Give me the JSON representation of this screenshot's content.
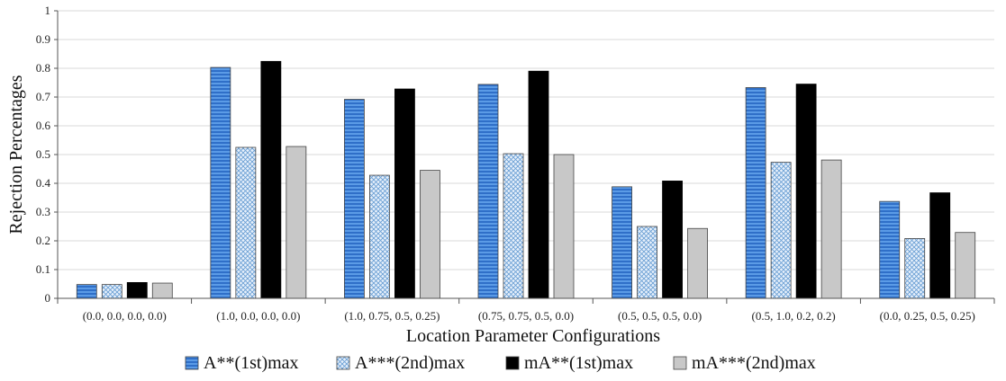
{
  "chart_data": {
    "type": "bar",
    "title": "",
    "xlabel": "Location Parameter Configurations",
    "ylabel": "Rejection Percentages",
    "ylim": [
      0,
      1
    ],
    "yticks": [
      "0",
      "0.1",
      "0.2",
      "0.3",
      "0.4",
      "0.5",
      "0.6",
      "0.7",
      "0.8",
      "0.9",
      "1"
    ],
    "grid": "horizontal",
    "legend_position": "bottom",
    "categories": [
      "(0.0, 0.0, 0.0, 0.0)",
      "(1.0, 0.0, 0.0, 0.0)",
      "(1.0, 0.75, 0.5, 0.25)",
      "(0.75, 0.75, 0.5, 0.0)",
      "(0.5, 0.5, 0.5, 0.0)",
      "(0.5, 1.0, 0.2, 0.2)",
      "(0.0, 0.25, 0.5, 0.25)"
    ],
    "series": [
      {
        "name": "A**(1st)max",
        "values": [
          0.048,
          0.803,
          0.692,
          0.744,
          0.388,
          0.733,
          0.337
        ],
        "color": "#3d7fd6",
        "pattern": "horizontal-stripes"
      },
      {
        "name": "A***(2nd)max",
        "values": [
          0.048,
          0.525,
          0.428,
          0.503,
          0.25,
          0.473,
          0.208
        ],
        "color": "#9ec3e8",
        "pattern": "crosshatch"
      },
      {
        "name": "mA**(1st)max",
        "values": [
          0.055,
          0.824,
          0.728,
          0.79,
          0.408,
          0.745,
          0.367
        ],
        "color": "#000000",
        "pattern": "solid"
      },
      {
        "name": "mA***(2nd)max",
        "values": [
          0.053,
          0.528,
          0.445,
          0.5,
          0.243,
          0.481,
          0.229
        ],
        "color": "#c8c8c8",
        "pattern": "solid"
      }
    ]
  }
}
